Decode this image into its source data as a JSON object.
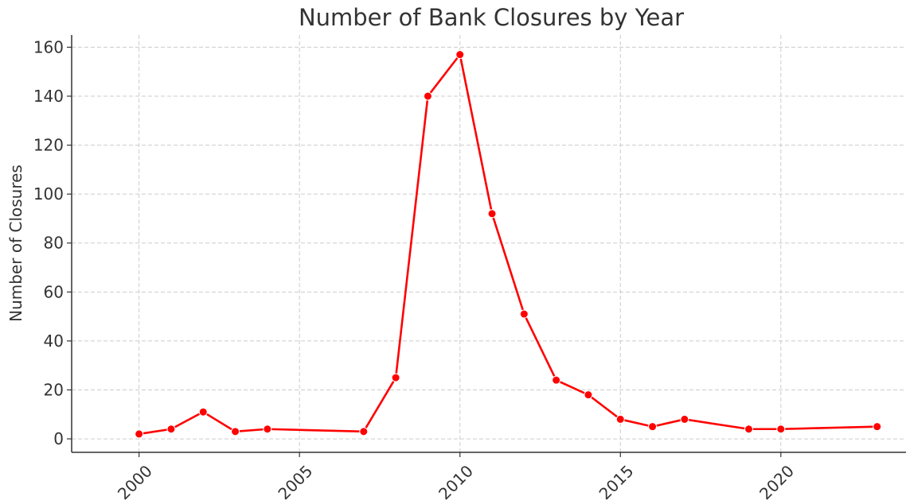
{
  "chart_data": {
    "type": "line",
    "title": "Number of Bank Closures by Year",
    "xlabel": "",
    "ylabel": "Number of Closures",
    "x": [
      2000,
      2001,
      2002,
      2003,
      2004,
      2007,
      2008,
      2009,
      2010,
      2011,
      2012,
      2013,
      2014,
      2015,
      2016,
      2017,
      2019,
      2020,
      2023
    ],
    "series": [
      {
        "name": "",
        "color": "#ff0000",
        "values": [
          2,
          4,
          11,
          3,
          4,
          3,
          25,
          140,
          157,
          92,
          51,
          24,
          18,
          8,
          5,
          8,
          4,
          4,
          5
        ]
      }
    ],
    "xlim": [
      1997.9,
      2023.9
    ],
    "ylim": [
      -5.5,
      165
    ],
    "xticks": [
      2000,
      2005,
      2010,
      2015,
      2020
    ],
    "yticks": [
      0,
      20,
      40,
      60,
      80,
      100,
      120,
      140,
      160
    ],
    "grid": true,
    "legend": "none"
  }
}
